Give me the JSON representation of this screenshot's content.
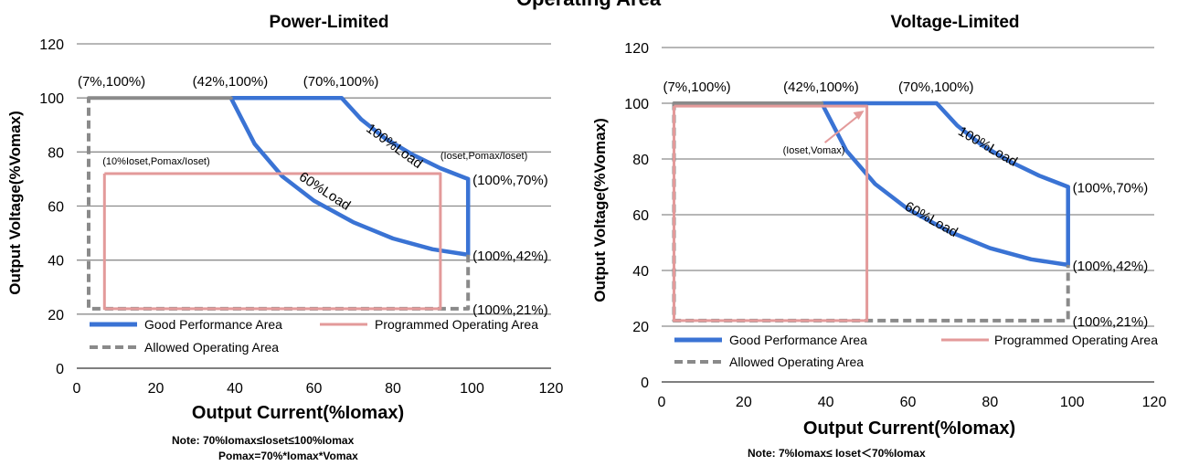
{
  "page": {
    "title": "Operating Area"
  },
  "legend": {
    "good": "Good Performance Area",
    "programmed": "Programmed Operating Area",
    "allowed": "Allowed Operating Area"
  },
  "colors": {
    "good": "#3a73d4",
    "programmed": "#e39a9a",
    "allowed": "#8a8a8a",
    "grid": "#8c8c8c"
  },
  "chart_data": [
    {
      "type": "line",
      "title": "Power-Limited",
      "xlabel": "Output Current(%Iomax)",
      "ylabel": "Output Voltage(%Vomax)",
      "xlim": [
        0,
        120
      ],
      "ylim": [
        0,
        120
      ],
      "xticks": [
        0,
        20,
        40,
        60,
        80,
        100,
        120
      ],
      "yticks": [
        0,
        20,
        40,
        60,
        80,
        100,
        120
      ],
      "grid": "horizontal",
      "legend_position": "bottom",
      "series": [
        {
          "name": "Good Performance Area",
          "style": "solid-blue",
          "points": [
            [
              39,
              100
            ],
            [
              67,
              100
            ],
            [
              72,
              92
            ],
            [
              78,
              85
            ],
            [
              85,
              79
            ],
            [
              92,
              74
            ],
            [
              99,
              70
            ],
            [
              99,
              42
            ],
            [
              90,
              44
            ],
            [
              80,
              48
            ],
            [
              70,
              54
            ],
            [
              60,
              62
            ],
            [
              52,
              71
            ],
            [
              45,
              83
            ],
            [
              39,
              100
            ]
          ]
        },
        {
          "name": "Allowed Operating Area",
          "style": "dashed-gray",
          "points": [
            [
              3,
              100
            ],
            [
              39,
              100
            ],
            [
              39,
              100
            ],
            [
              3,
              100
            ],
            [
              3,
              22
            ],
            [
              99,
              22
            ],
            [
              99,
              42
            ]
          ]
        },
        {
          "name": "Programmed Operating Area",
          "style": "solid-pink",
          "points": [
            [
              7,
              72
            ],
            [
              92,
              72
            ],
            [
              92,
              22
            ],
            [
              7,
              22
            ],
            [
              7,
              72
            ]
          ]
        }
      ],
      "annotations": [
        {
          "text": "(7%,100%)",
          "x": 3,
          "y": 100
        },
        {
          "text": "(42%,100%)",
          "x": 39,
          "y": 100
        },
        {
          "text": "(70%,100%)",
          "x": 67,
          "y": 100
        },
        {
          "text": "(100%,70%)",
          "x": 99,
          "y": 70
        },
        {
          "text": "(100%,42%)",
          "x": 99,
          "y": 42
        },
        {
          "text": "(100%,21%)",
          "x": 99,
          "y": 22
        },
        {
          "text": "(10%Ioset,Pomax/Ioset)",
          "x": 7,
          "y": 72
        },
        {
          "text": "(Ioset,Pomax/Ioset)",
          "x": 92,
          "y": 72
        }
      ],
      "curve_labels": [
        "100%Load",
        "60%Load"
      ],
      "notes": [
        "Note:  70%Iomax≤Ioset≤100%Iomax",
        "Pomax=70%*Iomax*Vomax"
      ]
    },
    {
      "type": "line",
      "title": "Voltage-Limited",
      "xlabel": "Output Current(%Iomax)",
      "ylabel": "Output Voltage(%Vomax)",
      "xlim": [
        0,
        120
      ],
      "ylim": [
        0,
        120
      ],
      "xticks": [
        0,
        20,
        40,
        60,
        80,
        100,
        120
      ],
      "yticks": [
        0,
        20,
        40,
        60,
        80,
        100,
        120
      ],
      "grid": "horizontal",
      "legend_position": "bottom",
      "series": [
        {
          "name": "Good Performance Area",
          "style": "solid-blue",
          "points": [
            [
              39,
              100
            ],
            [
              67,
              100
            ],
            [
              72,
              92
            ],
            [
              78,
              85
            ],
            [
              85,
              79
            ],
            [
              92,
              74
            ],
            [
              99,
              70
            ],
            [
              99,
              42
            ],
            [
              90,
              44
            ],
            [
              80,
              48
            ],
            [
              70,
              54
            ],
            [
              60,
              62
            ],
            [
              52,
              71
            ],
            [
              45,
              83
            ],
            [
              39,
              100
            ]
          ]
        },
        {
          "name": "Allowed Operating Area",
          "style": "dashed-gray",
          "points": [
            [
              3,
              100
            ],
            [
              39,
              100
            ],
            [
              39,
              100
            ],
            [
              3,
              100
            ],
            [
              3,
              22
            ],
            [
              99,
              22
            ],
            [
              99,
              42
            ]
          ]
        },
        {
          "name": "Programmed Operating Area",
          "style": "solid-pink",
          "points": [
            [
              3,
              99
            ],
            [
              50,
              99
            ],
            [
              50,
              22
            ],
            [
              3,
              22
            ],
            [
              3,
              99
            ]
          ]
        }
      ],
      "annotations": [
        {
          "text": "(7%,100%)",
          "x": 3,
          "y": 100
        },
        {
          "text": "(42%,100%)",
          "x": 39,
          "y": 100
        },
        {
          "text": "(70%,100%)",
          "x": 67,
          "y": 100
        },
        {
          "text": "(100%,70%)",
          "x": 99,
          "y": 70
        },
        {
          "text": "(100%,42%)",
          "x": 99,
          "y": 42
        },
        {
          "text": "(100%,21%)",
          "x": 99,
          "y": 22
        },
        {
          "text": "(Ioset,Vomax)",
          "x": 50,
          "y": 99
        }
      ],
      "curve_labels": [
        "100%Load",
        "60%Load"
      ],
      "notes": [
        "Note: 7%Iomax≤ Ioset＜70%Iomax"
      ]
    }
  ]
}
